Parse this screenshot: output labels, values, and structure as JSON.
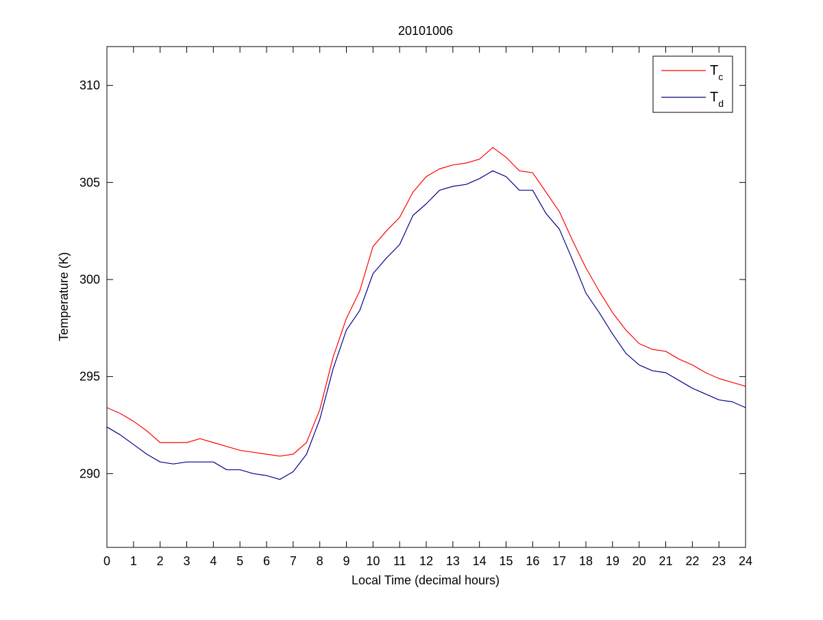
{
  "chart_data": {
    "type": "line",
    "title": "20101006",
    "xlabel": "Local Time (decimal hours)",
    "ylabel": "Temperature (K)",
    "xlim": [
      0,
      24
    ],
    "ylim": [
      286.2,
      312.0
    ],
    "xticks": [
      "0",
      "1",
      "2",
      "3",
      "4",
      "5",
      "6",
      "7",
      "8",
      "9",
      "10",
      "11",
      "12",
      "13",
      "14",
      "15",
      "16",
      "17",
      "18",
      "19",
      "20",
      "21",
      "22",
      "23",
      "24"
    ],
    "yticks": [
      "290",
      "295",
      "300",
      "305",
      "310"
    ],
    "grid": false,
    "legend_position": "top-right",
    "series": [
      {
        "name": "T_c",
        "legend_base": "T",
        "legend_sub": "c",
        "color": "#ff0000",
        "x": [
          0,
          0.5,
          1,
          1.5,
          2,
          2.5,
          3,
          3.5,
          4,
          4.5,
          5,
          5.5,
          6,
          6.5,
          7,
          7.5,
          8,
          8.5,
          9,
          9.5,
          10,
          10.5,
          11,
          11.5,
          12,
          12.5,
          13,
          13.5,
          14,
          14.5,
          15,
          15.5,
          16,
          16.5,
          17,
          17.5,
          18,
          18.5,
          19,
          19.5,
          20,
          20.5,
          21,
          21.5,
          22,
          22.5,
          23,
          23.5,
          24
        ],
        "values": [
          293.4,
          293.1,
          292.7,
          292.2,
          291.6,
          291.6,
          291.6,
          291.8,
          291.6,
          291.4,
          291.2,
          291.1,
          291.0,
          290.9,
          291.0,
          291.6,
          293.3,
          296.0,
          298.0,
          299.4,
          301.7,
          302.5,
          303.2,
          304.5,
          305.3,
          305.7,
          305.9,
          306.0,
          306.2,
          306.8,
          306.3,
          305.6,
          305.5,
          304.5,
          303.5,
          302.0,
          300.6,
          299.4,
          298.3,
          297.4,
          296.7,
          296.4,
          296.3,
          295.9,
          295.6,
          295.2,
          294.9,
          294.7,
          294.5
        ]
      },
      {
        "name": "T_d",
        "legend_base": "T",
        "legend_sub": "d",
        "color": "#00008b",
        "x": [
          0,
          0.5,
          1,
          1.5,
          2,
          2.5,
          3,
          3.5,
          4,
          4.5,
          5,
          5.5,
          6,
          6.5,
          7,
          7.5,
          8,
          8.5,
          9,
          9.5,
          10,
          10.5,
          11,
          11.5,
          12,
          12.5,
          13,
          13.5,
          14,
          14.5,
          15,
          15.5,
          16,
          16.5,
          17,
          17.5,
          18,
          18.5,
          19,
          19.5,
          20,
          20.5,
          21,
          21.5,
          22,
          22.5,
          23,
          23.5,
          24
        ],
        "values": [
          292.4,
          292.0,
          291.5,
          291.0,
          290.6,
          290.5,
          290.6,
          290.6,
          290.6,
          290.2,
          290.2,
          290.0,
          289.9,
          289.7,
          290.1,
          291.0,
          292.8,
          295.4,
          297.4,
          298.4,
          300.3,
          301.1,
          301.8,
          303.3,
          303.9,
          304.6,
          304.8,
          304.9,
          305.2,
          305.6,
          305.3,
          304.6,
          304.6,
          303.4,
          302.6,
          301.0,
          299.3,
          298.3,
          297.2,
          296.2,
          295.6,
          295.3,
          295.2,
          294.8,
          294.4,
          294.1,
          293.8,
          293.7,
          293.4
        ]
      }
    ]
  }
}
